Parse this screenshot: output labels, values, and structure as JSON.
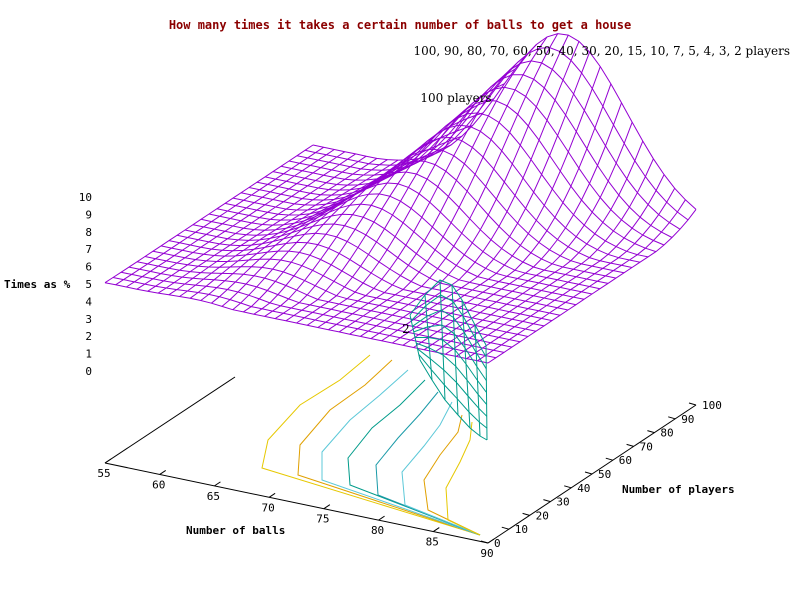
{
  "chart_data": {
    "type": "surface3d",
    "title": "How many times it takes a certain number of balls to get a house",
    "subtitle": "100, 90, 80, 70, 60, 50, 40, 30, 20, 15, 10, 7, 5, 4, 3, 2 players",
    "surface_label": "100 players",
    "contour_label": "2",
    "xlabel": "Number of balls",
    "ylabel": "Number of players",
    "zlabel": "Times as %",
    "xlim": [
      55,
      90
    ],
    "ylim": [
      0,
      100
    ],
    "zlim": [
      0,
      10
    ],
    "x_ticks": [
      "55",
      "60",
      "65",
      "70",
      "75",
      "80",
      "85",
      "90"
    ],
    "y_ticks": [
      "0",
      "10",
      "20",
      "30",
      "40",
      "50",
      "60",
      "70",
      "80",
      "90",
      "100"
    ],
    "z_ticks": [
      "0",
      "1",
      "2",
      "3",
      "4",
      "5",
      "6",
      "7",
      "8",
      "9",
      "10"
    ],
    "grid": false,
    "colors": {
      "title": "#8b0000",
      "surface_100": "#9400d3",
      "surface_2": "#009b8a",
      "axes": "#000000",
      "contours": [
        "#e6c800",
        "#e0a000",
        "#5cc8d8",
        "#009b8a",
        "#1a9aa8",
        "#5cc8d8",
        "#e0a000",
        "#e6c800"
      ]
    },
    "series": [
      {
        "name": "100 players",
        "balls": [
          55,
          60,
          65,
          70,
          75,
          80,
          85,
          90
        ],
        "peak_percent": 9.5,
        "peak_balls": 78
      },
      {
        "name": "2",
        "balls": [
          55,
          60,
          65,
          70,
          75,
          80,
          85,
          90
        ],
        "peak_percent": 5.3,
        "peak_balls": 90
      }
    ]
  }
}
